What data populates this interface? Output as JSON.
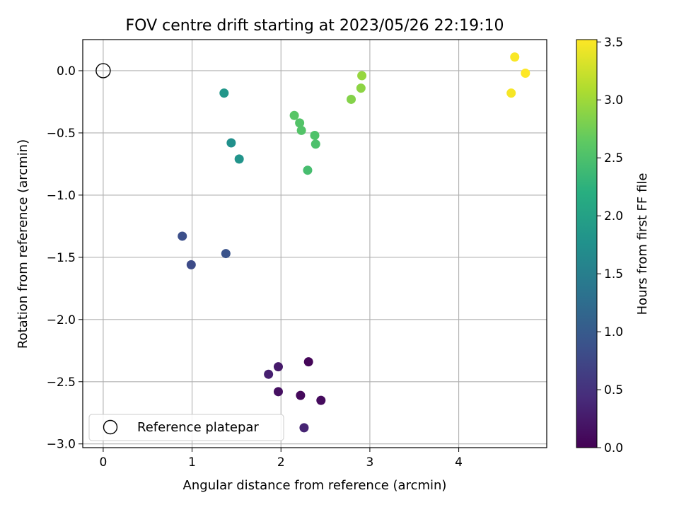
{
  "chart_data": {
    "type": "scatter",
    "title": "FOV centre drift starting at 2023/05/26 22:19:10",
    "xlabel": "Angular distance from reference (arcmin)",
    "ylabel": "Rotation from reference (arcmin)",
    "xlim": [
      -0.23,
      4.99
    ],
    "ylim": [
      -3.03,
      0.25
    ],
    "xticks": [
      0,
      1,
      2,
      3,
      4
    ],
    "xtick_labels": [
      "0",
      "1",
      "2",
      "3",
      "4"
    ],
    "yticks": [
      0.0,
      -0.5,
      -1.0,
      -1.5,
      -2.0,
      -2.5,
      -3.0
    ],
    "ytick_labels": [
      "0.0",
      "−0.5",
      "−1.0",
      "−1.5",
      "−2.0",
      "−2.5",
      "−3.0"
    ],
    "grid": true,
    "colormap": "viridis",
    "colorbar": {
      "label": "Hours from first FF file",
      "range": [
        0.0,
        3.52
      ],
      "ticks": [
        0.0,
        0.5,
        1.0,
        1.5,
        2.0,
        2.5,
        3.0,
        3.5
      ],
      "tick_labels": [
        "0.0",
        "0.5",
        "1.0",
        "1.5",
        "2.0",
        "2.5",
        "3.0",
        "3.5"
      ]
    },
    "legend": {
      "position": "lower-left",
      "entries": [
        {
          "label": "Reference platepar",
          "marker": "open-circle"
        }
      ]
    },
    "reference_point": {
      "x": 0.0,
      "y": 0.0
    },
    "points": [
      {
        "x": 2.31,
        "y": -2.34,
        "c": 0.05
      },
      {
        "x": 2.22,
        "y": -2.61,
        "c": 0.08
      },
      {
        "x": 2.45,
        "y": -2.65,
        "c": 0.1
      },
      {
        "x": 1.97,
        "y": -2.58,
        "c": 0.15
      },
      {
        "x": 1.97,
        "y": -2.38,
        "c": 0.25
      },
      {
        "x": 1.86,
        "y": -2.44,
        "c": 0.3
      },
      {
        "x": 2.26,
        "y": -2.87,
        "c": 0.35
      },
      {
        "x": 0.99,
        "y": -1.56,
        "c": 0.8
      },
      {
        "x": 0.89,
        "y": -1.33,
        "c": 0.85
      },
      {
        "x": 1.38,
        "y": -1.47,
        "c": 0.9
      },
      {
        "x": 1.44,
        "y": -0.58,
        "c": 1.75
      },
      {
        "x": 1.53,
        "y": -0.71,
        "c": 1.8
      },
      {
        "x": 1.36,
        "y": -0.18,
        "c": 1.85
      },
      {
        "x": 2.3,
        "y": -0.8,
        "c": 2.45
      },
      {
        "x": 2.39,
        "y": -0.59,
        "c": 2.5
      },
      {
        "x": 2.38,
        "y": -0.52,
        "c": 2.52
      },
      {
        "x": 2.23,
        "y": -0.48,
        "c": 2.55
      },
      {
        "x": 2.21,
        "y": -0.42,
        "c": 2.55
      },
      {
        "x": 2.15,
        "y": -0.36,
        "c": 2.58
      },
      {
        "x": 2.79,
        "y": -0.23,
        "c": 2.85
      },
      {
        "x": 2.9,
        "y": -0.14,
        "c": 2.9
      },
      {
        "x": 2.91,
        "y": -0.04,
        "c": 2.95
      },
      {
        "x": 4.59,
        "y": -0.18,
        "c": 3.48
      },
      {
        "x": 4.63,
        "y": 0.11,
        "c": 3.5
      },
      {
        "x": 4.75,
        "y": -0.02,
        "c": 3.52
      }
    ]
  }
}
